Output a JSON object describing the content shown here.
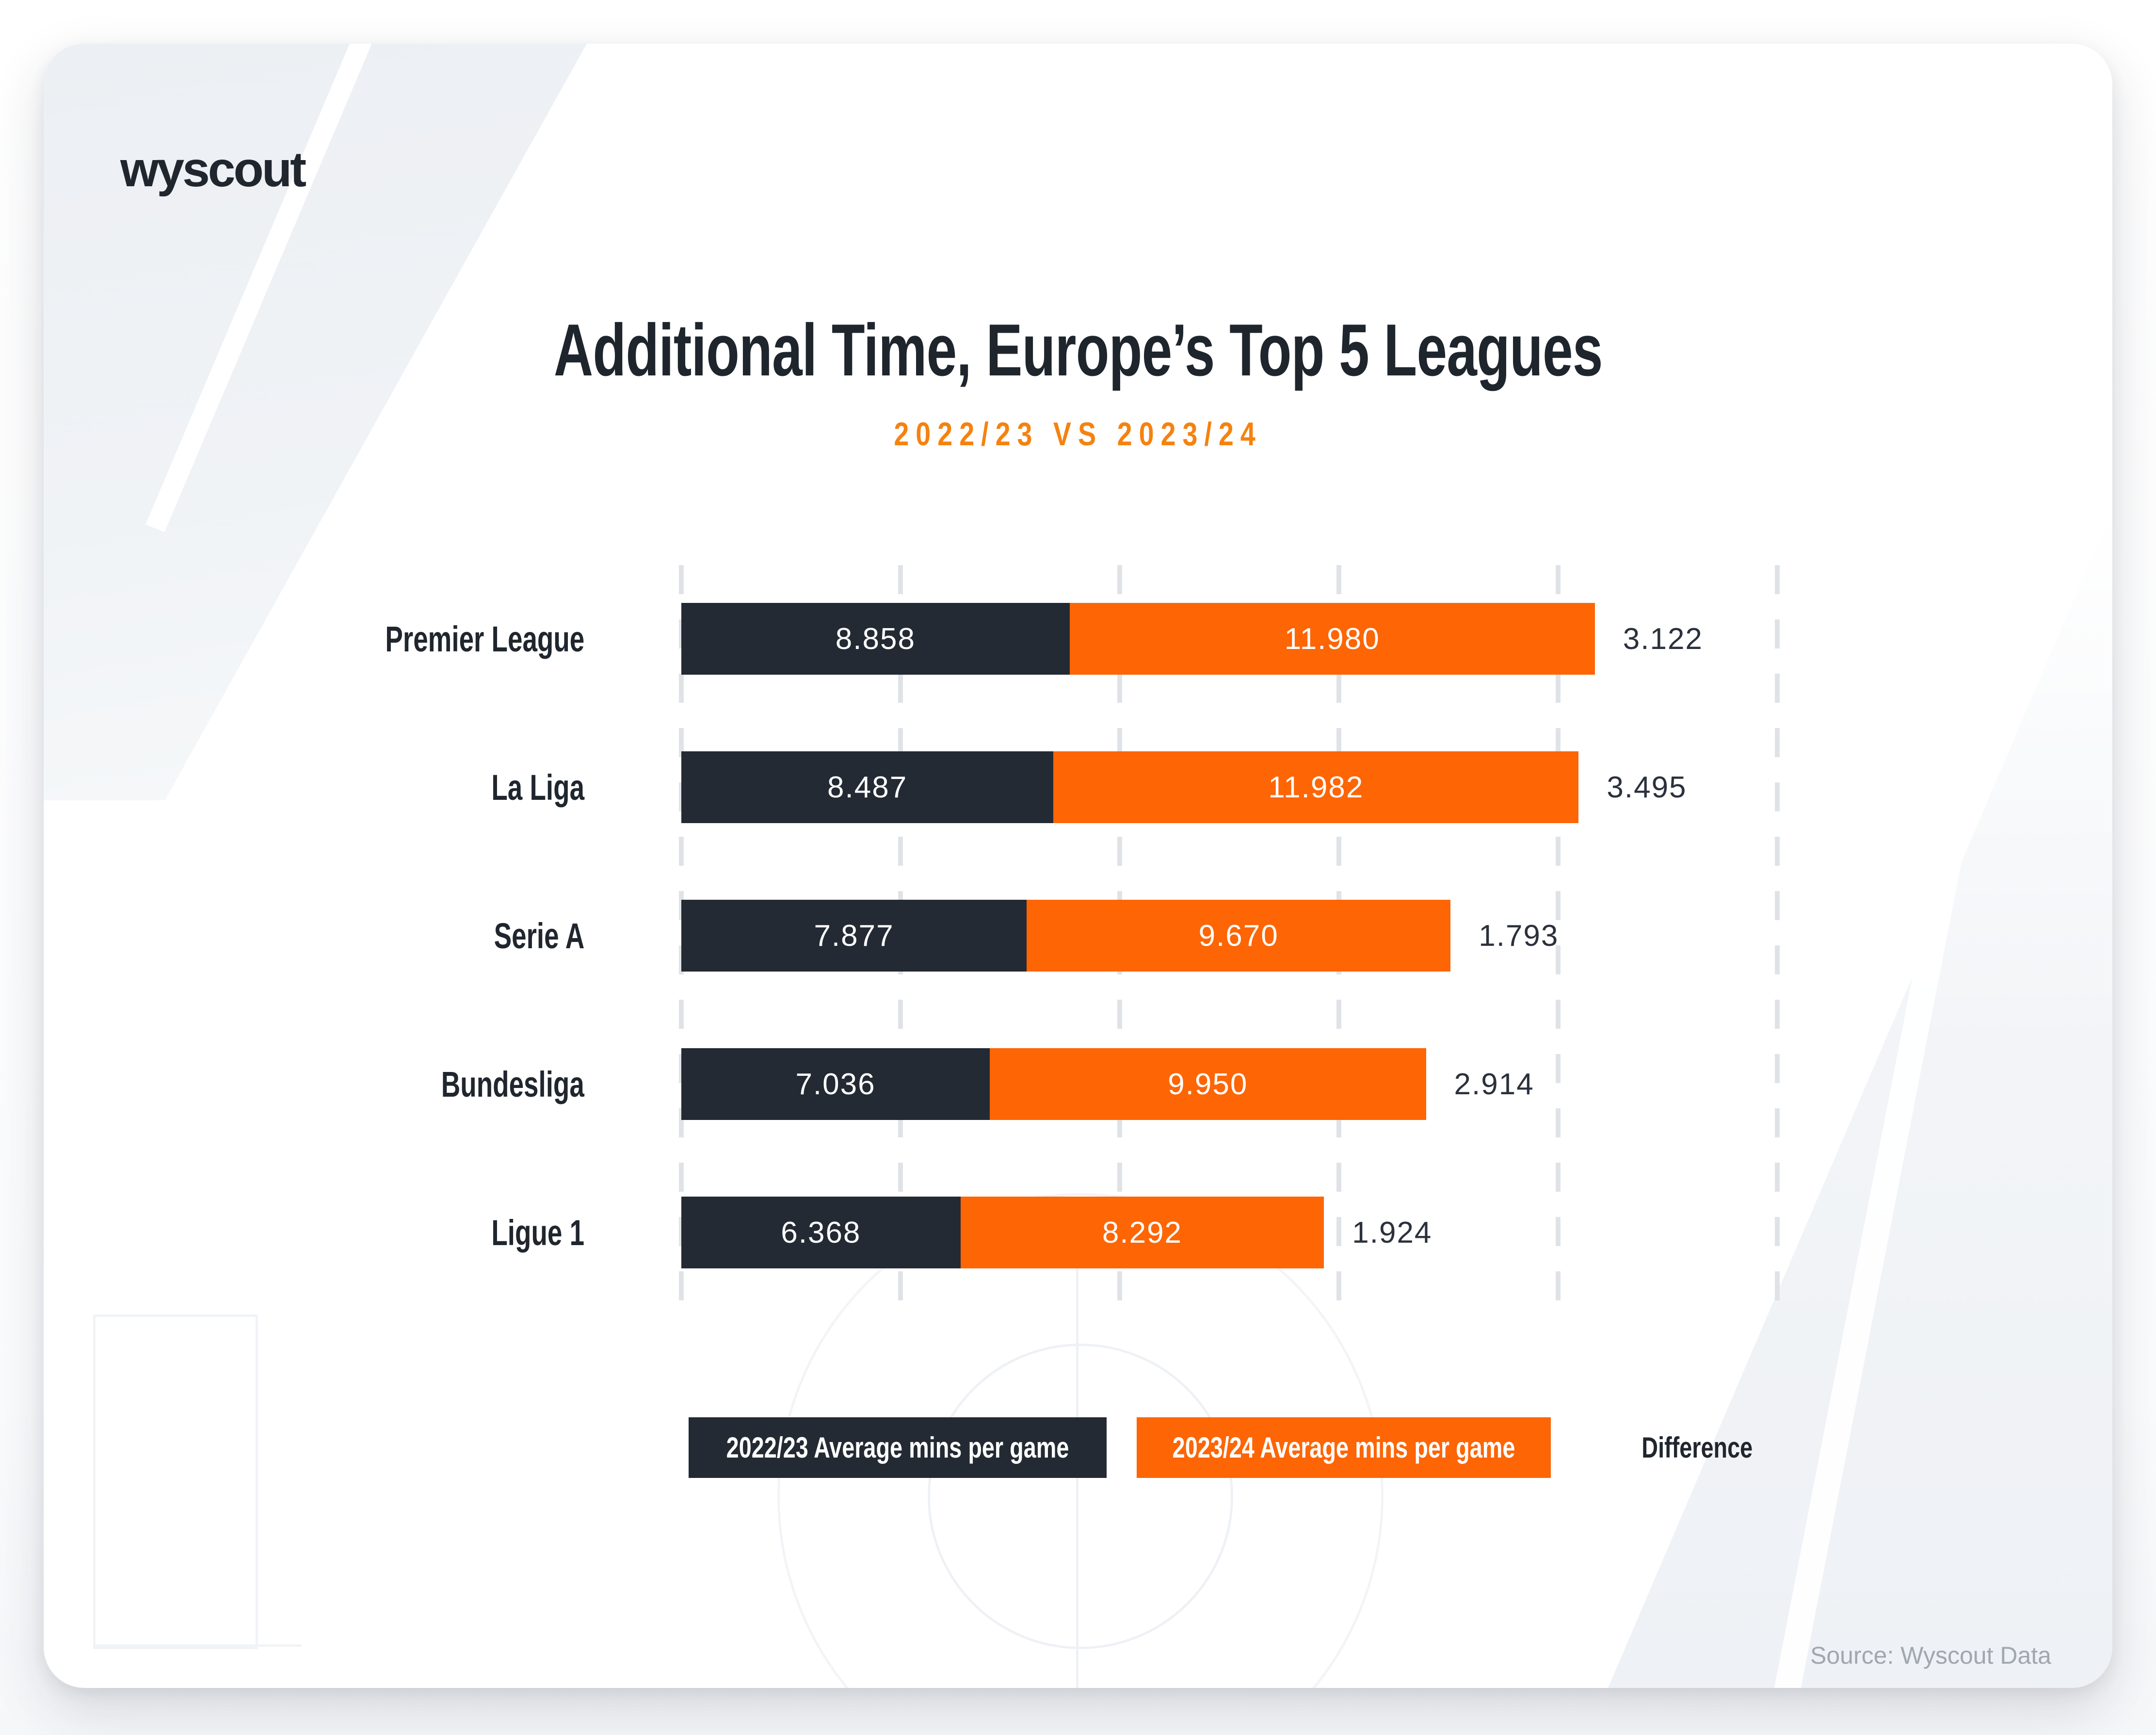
{
  "logo": {
    "text": "wyscout"
  },
  "header": {
    "title": "Additional Time, Europe’s Top 5 Leagues",
    "subtitle": "2022/23 VS 2023/24"
  },
  "legend": {
    "items": [
      {
        "label": "2022/23 Average mins per game",
        "swatch": "#232a33",
        "text_color": "#ffffff"
      },
      {
        "label": "2023/24 Average mins per game",
        "swatch": "#fd6505",
        "text_color": "#ffffff"
      }
    ],
    "difference_label": "Difference"
  },
  "footer": {
    "source": "Source: Wyscout Data"
  },
  "colors": {
    "bar_dark": "#232a33",
    "bar_orange": "#fd6505",
    "accent_orange": "#f5820f",
    "title_text": "#1f252d",
    "label_text": "#20262e",
    "value_text_on_bar": "#ffffff",
    "difference_text": "#2b313c",
    "gridline": "#dfe3e8",
    "source_text": "#a1a7af",
    "card_background": "#ffffff"
  },
  "chart_data": {
    "type": "bar",
    "orientation": "horizontal",
    "stacked": true,
    "title": "Additional Time, Europe’s Top 5 Leagues",
    "subtitle": "2022/23 VS 2023/24",
    "categories": [
      "Premier League",
      "La Liga",
      "Serie A",
      "Bundesliga",
      "Ligue 1"
    ],
    "series": [
      {
        "name": "2022/23 Average mins per game",
        "color": "#232a33",
        "values": [
          8.858,
          8.487,
          7.877,
          7.036,
          6.368
        ]
      },
      {
        "name": "2023/24 Average mins per game",
        "color": "#fd6505",
        "values": [
          11.98,
          11.982,
          9.67,
          9.95,
          8.292
        ]
      }
    ],
    "differences": [
      3.122,
      3.495,
      1.793,
      2.914,
      1.924
    ],
    "difference_label": "Difference",
    "value_decimals": 3,
    "x_axis": {
      "min": 0,
      "max": 25,
      "gridline_step": 5,
      "gridline_style": "dashed",
      "tick_labels_visible": false
    },
    "legend_position": "bottom",
    "units_label": "Average mins per game"
  }
}
